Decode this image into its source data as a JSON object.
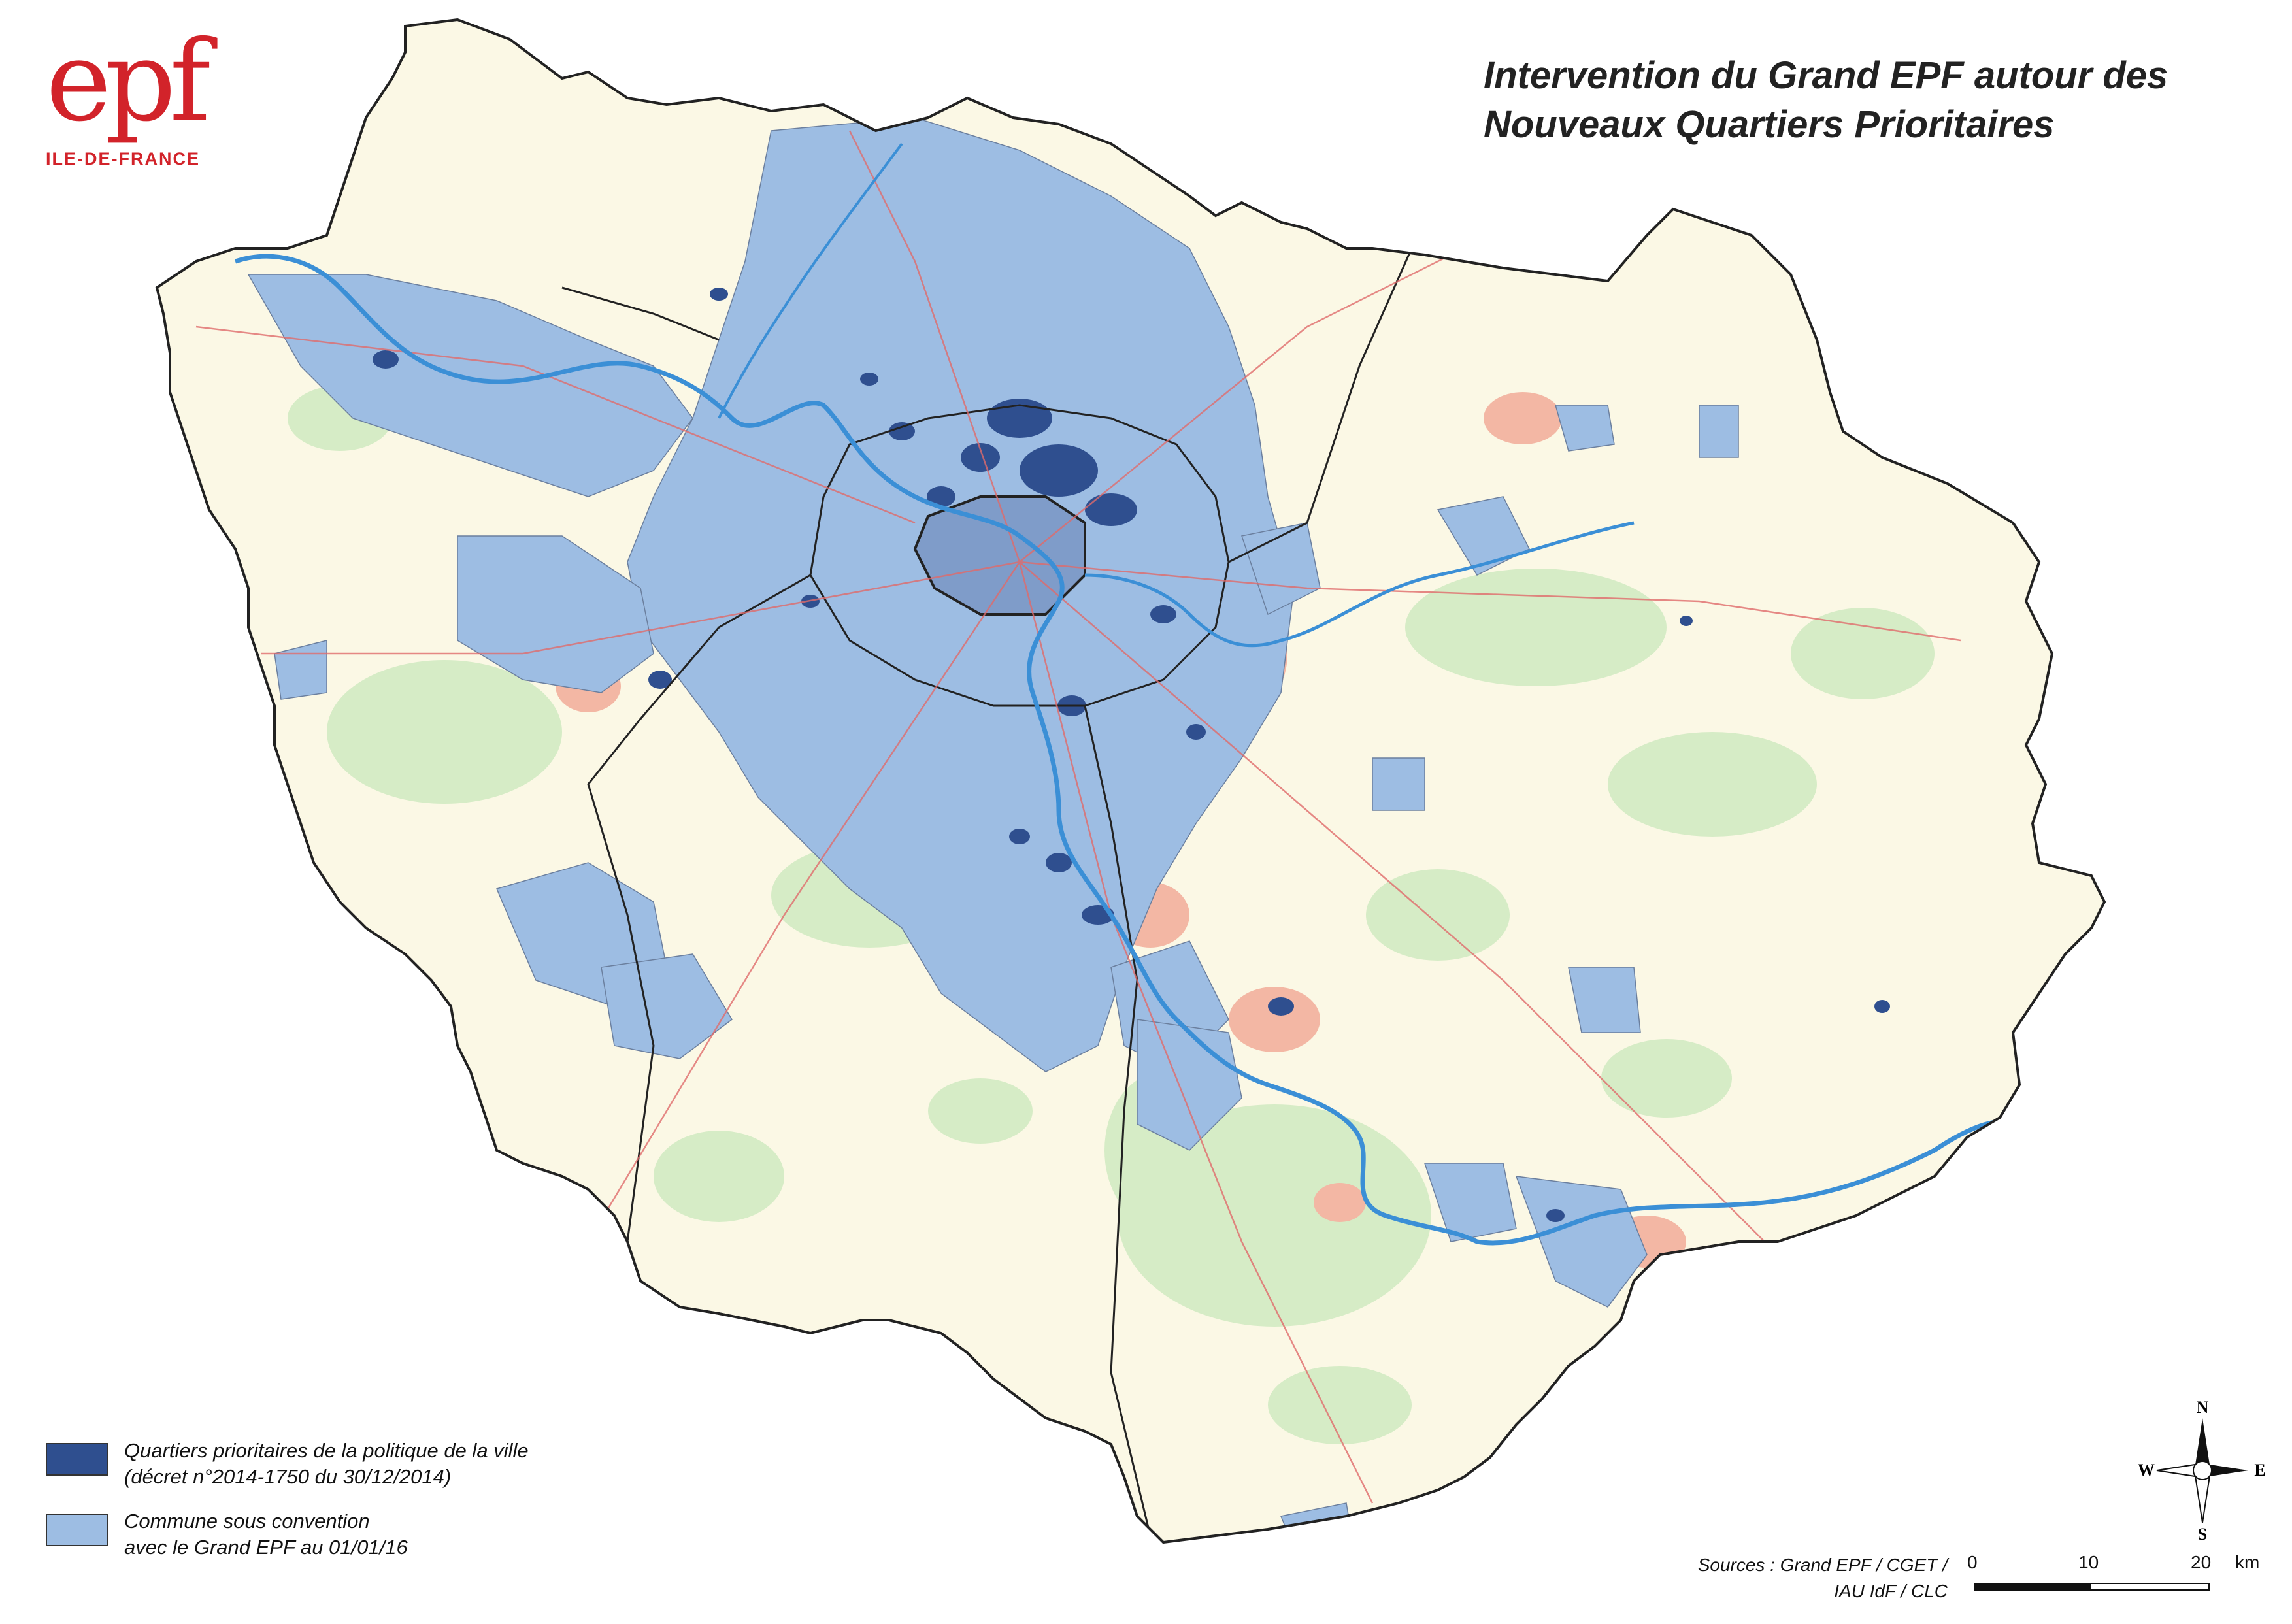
{
  "logo": {
    "mark": "epf",
    "subtitle": "ILE-DE-FRANCE"
  },
  "title": {
    "line1": "Intervention du Grand EPF autour des",
    "line2": "Nouveaux Quartiers Prioritaires"
  },
  "legend": {
    "items": [
      {
        "color": "#2f4f8f",
        "line1": "Quartiers prioritaires de la politique de la ville",
        "line2": "(décret n°2014-1750 du 30/12/2014)"
      },
      {
        "color": "#9dbde3",
        "line1": "Commune sous convention",
        "line2": "avec le Grand EPF au 01/01/16"
      }
    ]
  },
  "sources": {
    "line1": "Sources : Grand EPF / CGET /",
    "line2": "IAU IdF / CLC"
  },
  "scale": {
    "ticks": [
      "0",
      "10",
      "20"
    ],
    "unit": "km"
  },
  "compass": {
    "n": "N",
    "s": "S",
    "e": "E",
    "w": "W"
  },
  "colors": {
    "base": "#fbf8e5",
    "forest": "#d6ecc6",
    "urban": "#f3b7a4",
    "convention": "#9dbde3",
    "priority": "#2f4f8f",
    "river": "#3b8fd6",
    "roads": "#e06b6b",
    "borders": "#333333",
    "brand": "#d2232a"
  }
}
